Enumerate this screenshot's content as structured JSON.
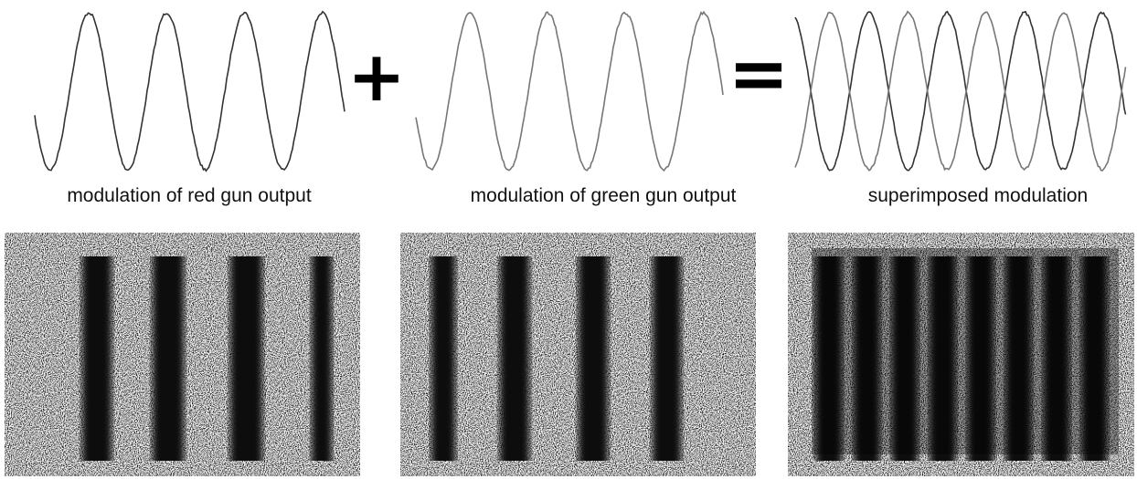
{
  "panels": [
    {
      "caption": "modulation of red gun output"
    },
    {
      "caption": "modulation of green gun output"
    },
    {
      "caption": "superimposed modulation"
    }
  ],
  "operators": {
    "plus": "+",
    "equals": "="
  }
}
